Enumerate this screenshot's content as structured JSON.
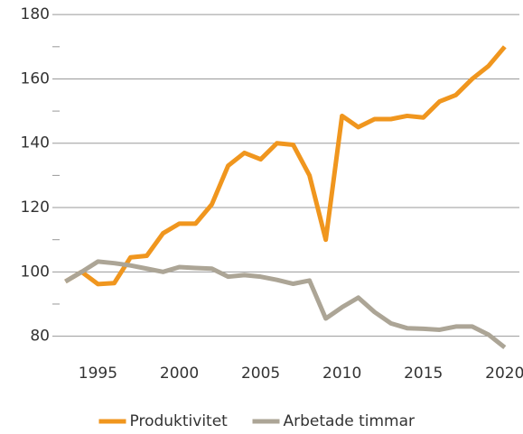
{
  "chart_data": {
    "type": "line",
    "x": [
      1993,
      1994,
      1995,
      1996,
      1997,
      1998,
      1999,
      2000,
      2001,
      2002,
      2003,
      2004,
      2005,
      2006,
      2007,
      2008,
      2009,
      2010,
      2011,
      2012,
      2013,
      2014,
      2015,
      2016,
      2017,
      2018,
      2019,
      2020
    ],
    "series": [
      {
        "name": "Produktivitet",
        "color": "#f0961e",
        "values": [
          97,
          100,
          96.2,
          96.5,
          104.5,
          105,
          112,
          115,
          115,
          121,
          133,
          137,
          135,
          140,
          139.5,
          130,
          110,
          148.5,
          145,
          147.5,
          147.5,
          148.5,
          148,
          153,
          155,
          160,
          164,
          170
        ]
      },
      {
        "name": "Arbetade timmar",
        "color": "#aca596",
        "values": [
          97,
          100,
          103.2,
          102.7,
          102,
          101,
          100,
          101.5,
          101.2,
          101,
          98.5,
          99,
          98.5,
          97.5,
          96.3,
          97.3,
          85.5,
          89,
          92,
          87.5,
          84,
          82.5,
          82.3,
          82,
          83,
          83,
          80.5,
          76.5
        ]
      }
    ],
    "xlim": [
      1992.2,
      2020.9
    ],
    "xticks": [
      1995,
      2000,
      2005,
      2010,
      2015,
      2020
    ],
    "ylim": [
      74,
      184
    ],
    "yticks": [
      80,
      100,
      120,
      140,
      160,
      180
    ],
    "yminorticks": [
      90,
      110,
      130,
      150,
      170
    ],
    "grid": true,
    "legend": "bottom"
  }
}
